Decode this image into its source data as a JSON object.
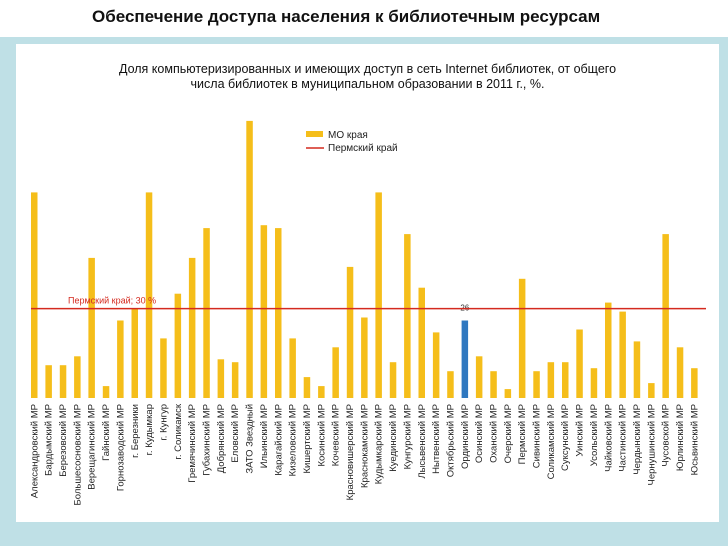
{
  "slide": {
    "title": "Обеспечение доступа населения к библиотечным ресурсам"
  },
  "colors": {
    "bar": "#f5be1a",
    "highlight": "#2f78c0",
    "region_line": "#d42a1f",
    "background": "#bfe0e6"
  },
  "chart_data": {
    "type": "bar",
    "title_line1": "Доля компьютеризированных и имеющих доступ в сеть Internet библиотек, от общего",
    "title_line2": "числа библиотек в муниципальном образовании в 2011 г., %.",
    "ylim": [
      0,
      100
    ],
    "legend": {
      "series_label": "МО края",
      "line_label": "Пермский край",
      "position": "top-center"
    },
    "reference_line": {
      "value": 30,
      "label": "Пермский край; 30 %"
    },
    "highlight": {
      "category": "Ординский МР",
      "label": "26"
    },
    "categories": [
      "Александровский МР",
      "Бардымский МР",
      "Березовский МР",
      "Большесосновский МР",
      "Верещагинский МР",
      "Гайнский МР",
      "Горнозаводский МР",
      "г. Березники",
      "г. Кудымкар",
      "г. Кунгур",
      "г. Соликамск",
      "Гремячинский МР",
      "Губахинский МР",
      "Добрянский МР",
      "Еловский МР",
      "ЗАТО Звездный",
      "Ильинский МР",
      "Карагайский МР",
      "Кизеловский МР",
      "Кишертский МР",
      "Косинский МР",
      "Кочевский МР",
      "Красновишерский МР",
      "Краснокамский МР",
      "Кудымкарский МР",
      "Куединский МР",
      "Кунгурский МР",
      "Лысьвенский МР",
      "Нытвенский МР",
      "Октябрьский МР",
      "Ординский МР",
      "Осинский МР",
      "Оханский МР",
      "Очерский МР",
      "Пермский МР",
      "Сивинский МР",
      "Соликамский МР",
      "Суксунский МР",
      "Уинский МР",
      "Усольский МР",
      "Чайковский МР",
      "Частинский МР",
      "Чердынский МР",
      "Чернушинский МР",
      "Чусовской МР",
      "Юрлинский МР",
      "Юсьвинский МР"
    ],
    "values": [
      69,
      11,
      11,
      14,
      47,
      4,
      26,
      30,
      69,
      20,
      35,
      47,
      57,
      13,
      12,
      93,
      58,
      57,
      20,
      7,
      4,
      17,
      44,
      27,
      69,
      12,
      55,
      37,
      22,
      9,
      26,
      14,
      9,
      3,
      40,
      9,
      12,
      12,
      23,
      10,
      32,
      29,
      19,
      5,
      55,
      17,
      10
    ]
  }
}
